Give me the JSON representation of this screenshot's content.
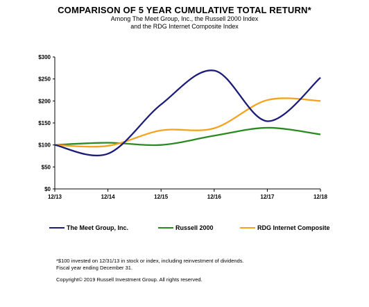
{
  "title": "COMPARISON OF 5 YEAR CUMULATIVE TOTAL RETURN*",
  "subtitle_line1": "Among The Meet Group, Inc., the Russell 2000 Index",
  "subtitle_line2": "and the RDG Internet Composite Index",
  "footnote_line1": "*$100 invested on 12/31/13  in stock or index, including reinvestment of dividends.",
  "footnote_line2": "Fiscal year ending December 31.",
  "copyright": "Copyright© 2019 Russell Investment Group. All rights reserved.",
  "chart_data": {
    "type": "line",
    "categories": [
      "12/13",
      "12/14",
      "12/15",
      "12/16",
      "12/17",
      "12/18"
    ],
    "ylim": [
      0,
      300
    ],
    "yticks": [
      0,
      50,
      100,
      150,
      200,
      250,
      300
    ],
    "ytick_labels": [
      "$0",
      "$50",
      "$100",
      "$150",
      "$200",
      "$250",
      "$300"
    ],
    "grid": false,
    "legend_position": "bottom",
    "series": [
      {
        "name": "The Meet Group, Inc.",
        "color": "#1c1c7a",
        "values": [
          100,
          80,
          192,
          269,
          154,
          253
        ]
      },
      {
        "name": "Russell 2000",
        "color": "#2a8a22",
        "values": [
          100,
          105,
          100,
          121,
          139,
          124
        ]
      },
      {
        "name": "RDG Internet Composite",
        "color": "#f5a21e",
        "values": [
          100,
          98,
          133,
          138,
          202,
          200
        ]
      }
    ]
  }
}
